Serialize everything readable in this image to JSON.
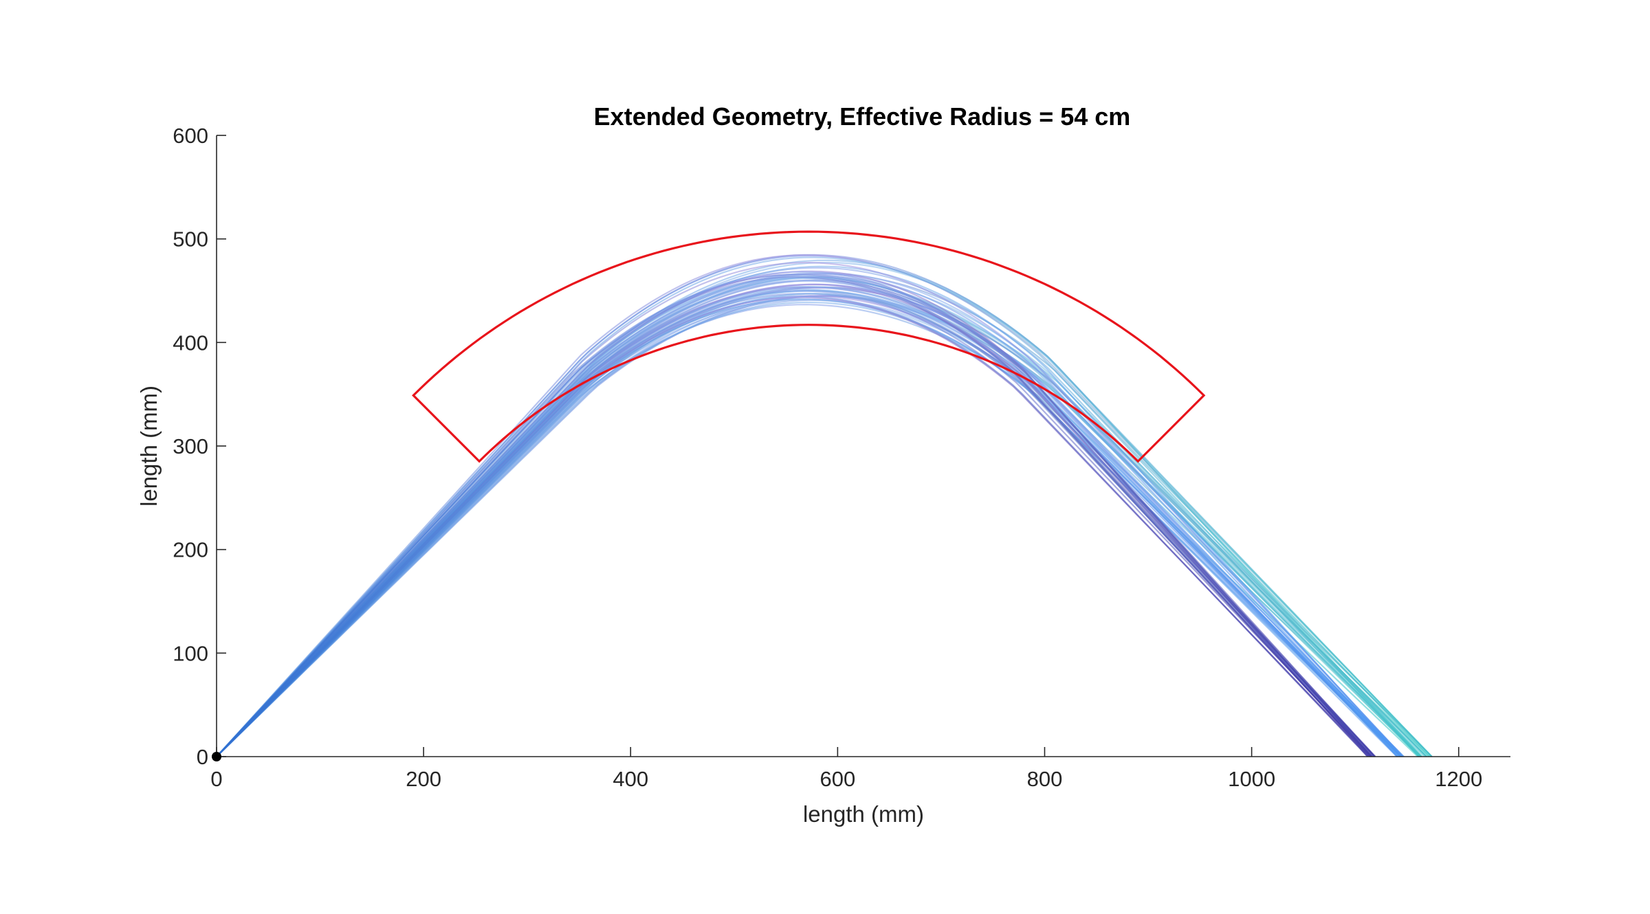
{
  "chart_data": {
    "type": "line",
    "title": "Extended Geometry, Effective Radius = 54 cm",
    "xlabel": "length (mm)",
    "ylabel": "length (mm)",
    "xlim": [
      0,
      1250
    ],
    "ylim": [
      0,
      600
    ],
    "xticks": [
      0,
      200,
      400,
      600,
      800,
      1000,
      1200
    ],
    "yticks": [
      0,
      100,
      200,
      300,
      400,
      500,
      600
    ],
    "xtick_labels": [
      "0",
      "200",
      "400",
      "600",
      "800",
      "1000",
      "1200"
    ],
    "ytick_labels": [
      "0",
      "100",
      "200",
      "300",
      "400",
      "500",
      "600"
    ],
    "grid": false,
    "legend": "none",
    "origin_marker": {
      "x": 0,
      "y": 0,
      "color": "#000000"
    },
    "boundary_region": {
      "color": "#e8141b",
      "center": [
        572,
        -33
      ],
      "outer_radius": 540,
      "inner_radius": 450,
      "angle_range_deg": [
        45,
        135
      ]
    },
    "bundles": [
      {
        "name_visible": false,
        "end_x_range": [
          1160,
          1175
        ],
        "start_color": "#4b8fe0",
        "end_color": "#31c9c2",
        "peak_range": [
          436,
          488
        ],
        "peak_x": 578,
        "rise_slope_range": [
          0.93,
          1.05
        ],
        "fall_end_slope_range": [
          -1.02,
          -0.92
        ],
        "count": 22
      },
      {
        "name_visible": false,
        "end_x_range": [
          1140,
          1148
        ],
        "start_color": "#3a7cd6",
        "end_color": "#3b8ff2",
        "peak_range": [
          438,
          478
        ],
        "peak_x": 574,
        "rise_slope_range": [
          0.94,
          1.05
        ],
        "fall_end_slope_range": [
          -1.03,
          -0.93
        ],
        "count": 18
      },
      {
        "name_visible": false,
        "end_x_range": [
          1112,
          1120
        ],
        "start_color": "#2f6fd0",
        "end_color": "#2e249a",
        "peak_range": [
          440,
          472
        ],
        "peak_x": 570,
        "rise_slope_range": [
          0.95,
          1.05
        ],
        "fall_end_slope_range": [
          -1.04,
          -0.95
        ],
        "count": 18
      }
    ],
    "mid_colors": [
      "#7fb0ea",
      "#8aa2ec",
      "#7f8fe0",
      "#9ab6ee",
      "#8db8ee",
      "#a593df"
    ]
  }
}
